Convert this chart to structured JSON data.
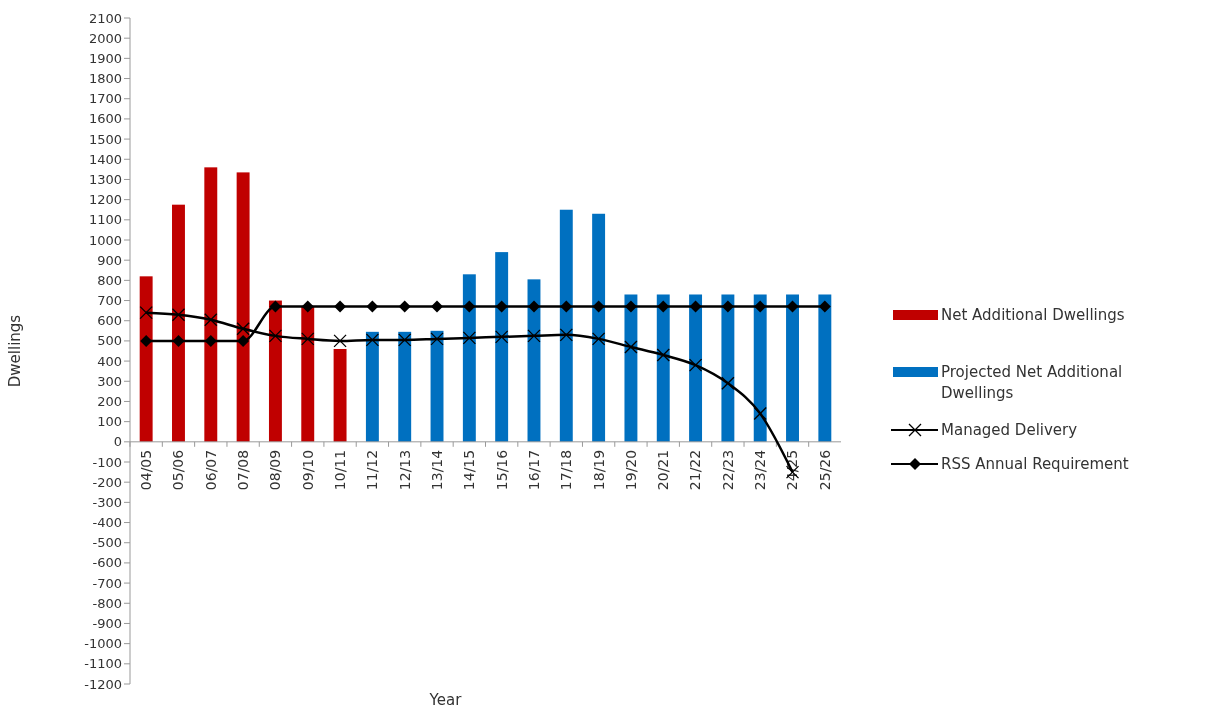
{
  "chart_data": {
    "type": "bar",
    "xlabel": "Year",
    "ylabel": "Dwellings",
    "categories": [
      "04/05",
      "05/06",
      "06/07",
      "07/08",
      "08/09",
      "09/10",
      "10/11",
      "11/12",
      "12/13",
      "13/14",
      "14/15",
      "15/16",
      "16/17",
      "17/18",
      "18/19",
      "19/20",
      "20/21",
      "21/22",
      "22/23",
      "23/24",
      "24/25",
      "25/26"
    ],
    "series": [
      {
        "name": "Net Additional Dwellings",
        "color": "#c00000",
        "values": [
          820,
          1175,
          1360,
          1335,
          700,
          670,
          460,
          null,
          null,
          null,
          null,
          null,
          null,
          null,
          null,
          null,
          null,
          null,
          null,
          null,
          null,
          null
        ]
      },
      {
        "name": "Projected Net Additional Dwellings",
        "color": "#0070c0",
        "values": [
          null,
          null,
          null,
          null,
          null,
          null,
          null,
          545,
          545,
          550,
          830,
          940,
          805,
          1150,
          1130,
          730,
          730,
          730,
          730,
          730,
          730,
          730
        ]
      },
      {
        "name": "Managed Delivery",
        "type": "line",
        "color": "#000000",
        "marker": "cross",
        "values": [
          640,
          630,
          605,
          560,
          525,
          510,
          500,
          505,
          505,
          510,
          515,
          520,
          525,
          530,
          510,
          470,
          430,
          380,
          290,
          140,
          -150,
          null
        ]
      },
      {
        "name": "RSS Annual Requirement",
        "type": "line",
        "color": "#000000",
        "marker": "diamond",
        "values": [
          500,
          500,
          500,
          500,
          670,
          670,
          670,
          670,
          670,
          670,
          670,
          670,
          670,
          670,
          670,
          670,
          670,
          670,
          670,
          670,
          670,
          670
        ]
      }
    ],
    "ylim": [
      -1200,
      2100
    ],
    "yticks": [
      -1200,
      -1100,
      -1000,
      -900,
      -800,
      -700,
      -600,
      -500,
      -400,
      -300,
      -200,
      -100,
      0,
      100,
      200,
      300,
      400,
      500,
      600,
      700,
      800,
      900,
      1000,
      1100,
      1200,
      1300,
      1400,
      1500,
      1600,
      1700,
      1800,
      1900,
      2000,
      2100
    ],
    "grid": false,
    "legend": "right"
  }
}
